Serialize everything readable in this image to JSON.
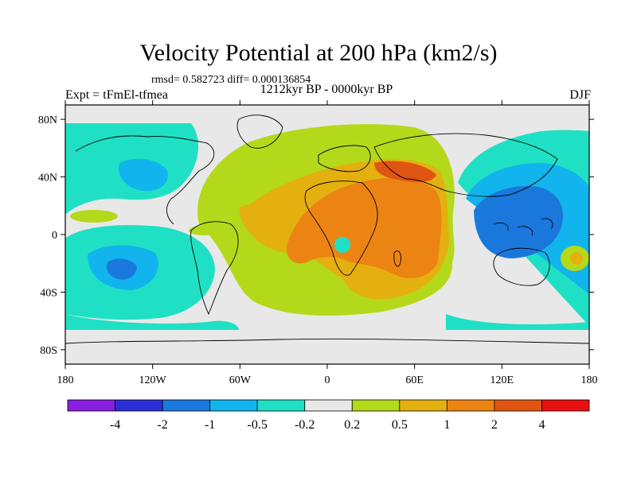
{
  "header": {
    "title": "Velocity Potential at 200 hPa (km2/s)",
    "stats": "rmsd= 0.582723 diff= 0.000136854",
    "experiment": "Expt = tFmEl-tfmea",
    "period": "1212kyr BP - 0000kyr BP",
    "season": "DJF"
  },
  "map": {
    "lat_ticks": [
      {
        "value": 80,
        "label": "80N"
      },
      {
        "value": 40,
        "label": "40N"
      },
      {
        "value": 0,
        "label": "0"
      },
      {
        "value": -40,
        "label": "40S"
      },
      {
        "value": -80,
        "label": "80S"
      }
    ],
    "lon_ticks": [
      {
        "value": -180,
        "label": "180"
      },
      {
        "value": -120,
        "label": "120W"
      },
      {
        "value": -60,
        "label": "60W"
      },
      {
        "value": 0,
        "label": "0"
      },
      {
        "value": 60,
        "label": "60E"
      },
      {
        "value": 120,
        "label": "120E"
      },
      {
        "value": 180,
        "label": "180"
      }
    ]
  },
  "colorbar": {
    "colors": [
      "#8a1fe0",
      "#2b2fd8",
      "#1a78dc",
      "#11b4ec",
      "#1fe0c4",
      "#e8e8e8",
      "#b4d91a",
      "#e4b010",
      "#ec8414",
      "#e05412",
      "#e81010"
    ],
    "labels": [
      "-4",
      "-2",
      "-1",
      "-0.5",
      "-0.2",
      "0.2",
      "0.5",
      "1",
      "2",
      "4"
    ]
  }
}
